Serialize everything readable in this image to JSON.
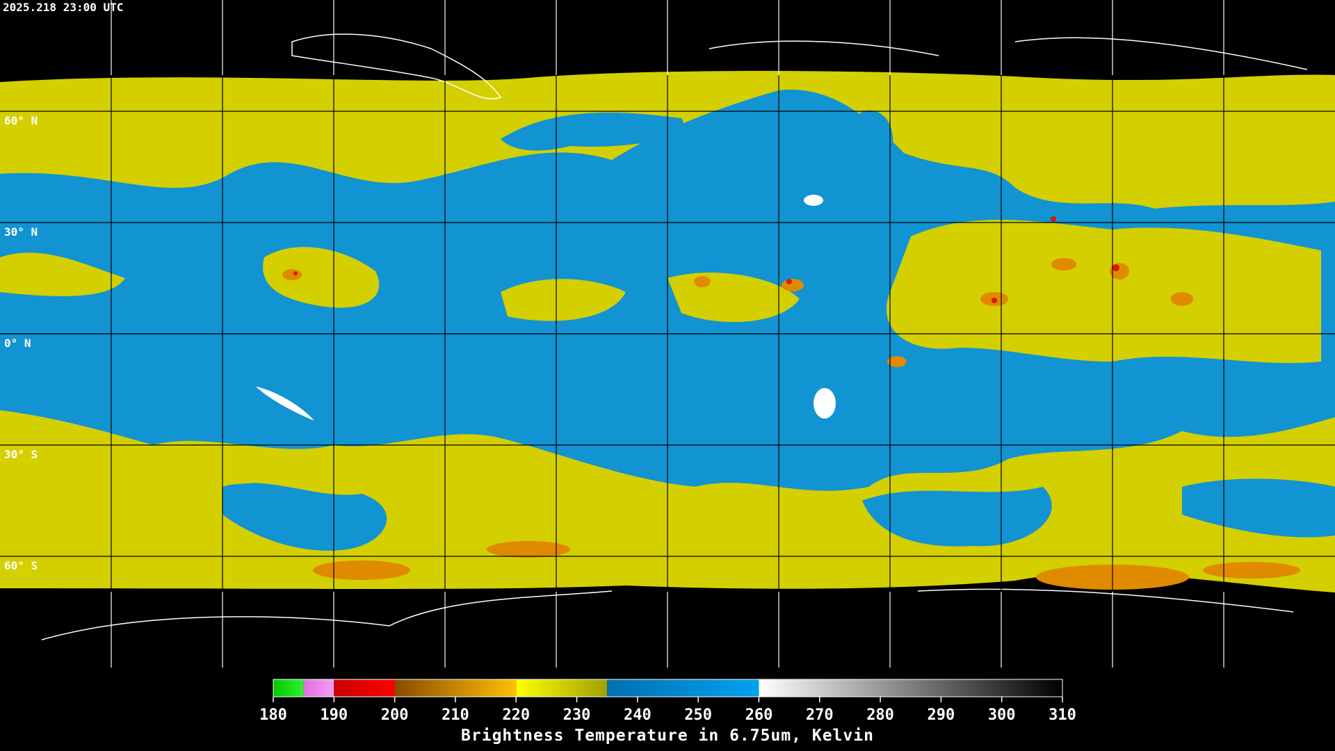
{
  "map": {
    "timestamp": "2025.218 23:00 UTC",
    "lat_lines": [
      {
        "value": 60,
        "label": "60° N"
      },
      {
        "value": 30,
        "label": "30° N"
      },
      {
        "value": 0,
        "label": "0° N"
      },
      {
        "value": -30,
        "label": "30° S"
      },
      {
        "value": -60,
        "label": "60° S"
      }
    ],
    "colorbar": {
      "title": "Brightness Temperature in 6.75um, Kelvin",
      "range": [
        180,
        310
      ],
      "ticks": [
        180,
        190,
        200,
        210,
        220,
        230,
        240,
        250,
        260,
        270,
        280,
        290,
        300,
        310
      ],
      "segments": [
        {
          "from": 180,
          "to": 185,
          "color_start": "#00c800",
          "color_end": "#30f030"
        },
        {
          "from": 185,
          "to": 190,
          "color_start": "#e070e0",
          "color_end": "#f0a0f0"
        },
        {
          "from": 190,
          "to": 200,
          "color_start": "#c80000",
          "color_end": "#ff0000"
        },
        {
          "from": 200,
          "to": 220,
          "color_start": "#8a4a00",
          "color_end": "#ffc000"
        },
        {
          "from": 220,
          "to": 235,
          "color_start": "#ffff00",
          "color_end": "#a0a000"
        },
        {
          "from": 235,
          "to": 260,
          "color_start": "#0070b0",
          "color_end": "#00a0f0"
        },
        {
          "from": 260,
          "to": 310,
          "color_start": "#ffffff",
          "color_end": "#000000"
        }
      ]
    }
  }
}
